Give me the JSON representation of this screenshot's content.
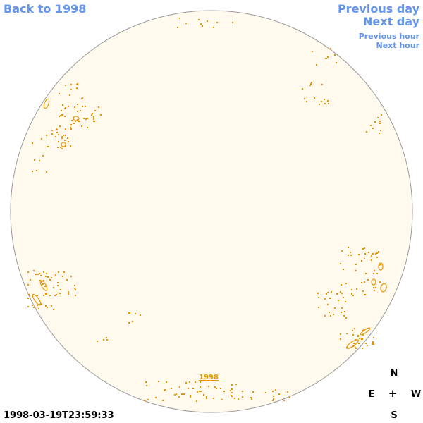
{
  "navigation": {
    "back_label": "Back to 1998",
    "previous_day_label": "Previous day",
    "next_day_label": "Next day",
    "previous_hour_label": "Previous hour",
    "next_hour_label": "Next hour"
  },
  "disk": {
    "year_link_label": "1998",
    "fill_color": "#fff9ee",
    "contour_color": "#e69500",
    "limb_color": "#999999"
  },
  "compass": {
    "north": "N",
    "south": "S",
    "east": "E",
    "west": "W",
    "center": "+"
  },
  "timestamp": "1998-03-19T23:59:33"
}
